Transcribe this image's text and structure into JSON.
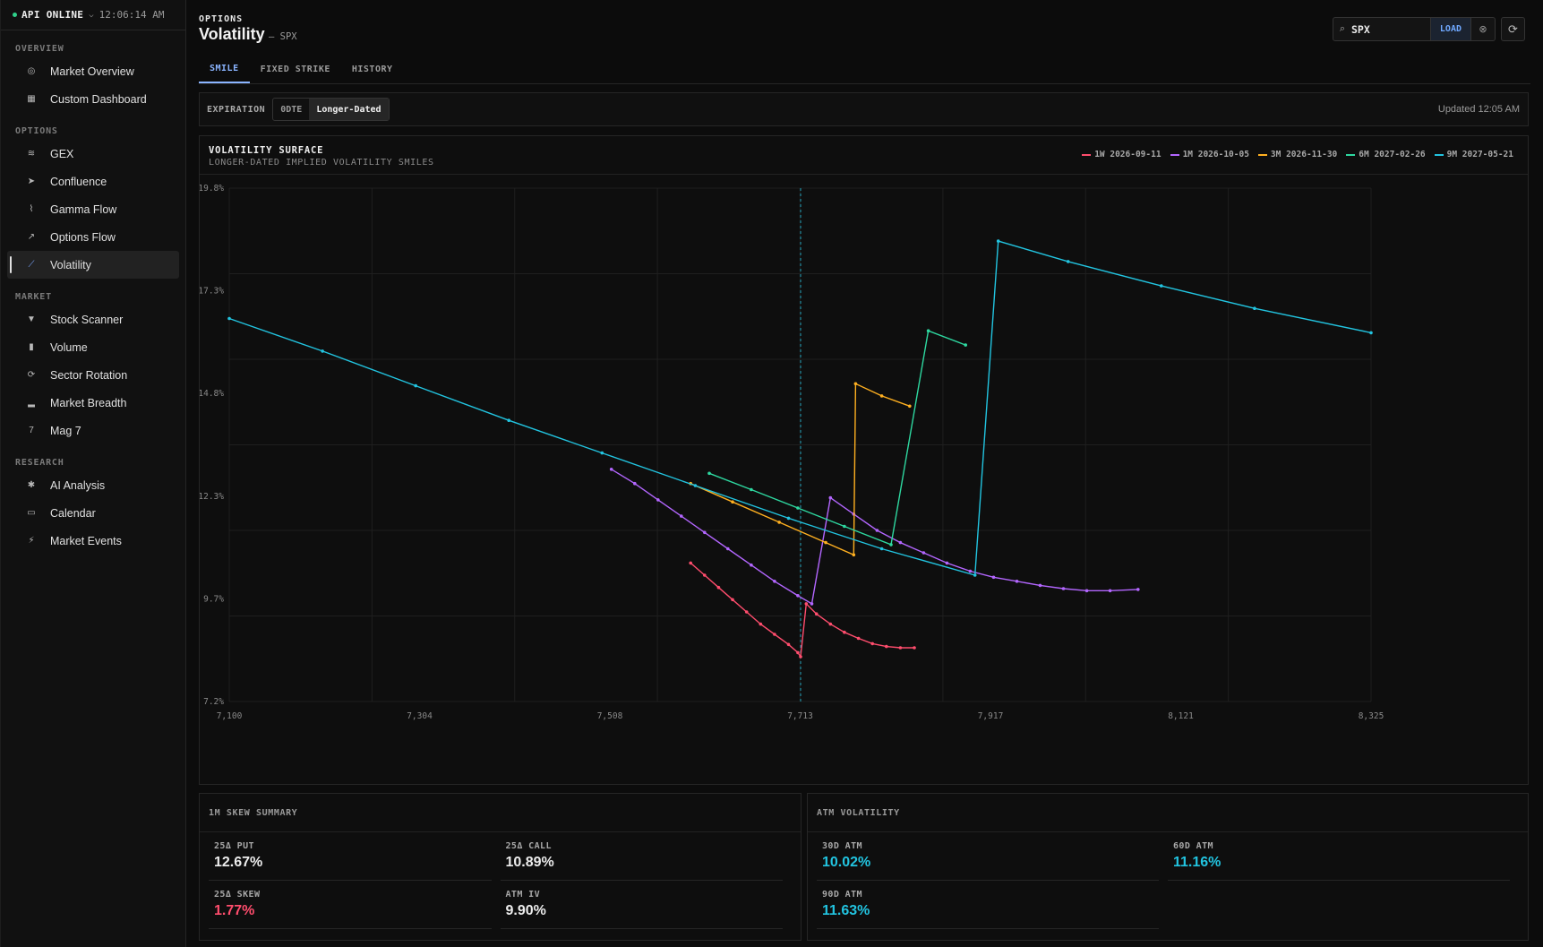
{
  "api": {
    "status": "API ONLINE",
    "time": "12:06:14 AM"
  },
  "nav": {
    "sections": [
      {
        "title": "OVERVIEW",
        "items": [
          {
            "label": "Market Overview",
            "icon": "crosshair-icon",
            "glyph": "◎"
          },
          {
            "label": "Custom Dashboard",
            "icon": "grid-icon",
            "glyph": "▦"
          }
        ]
      },
      {
        "title": "OPTIONS",
        "items": [
          {
            "label": "GEX",
            "icon": "layers-icon",
            "glyph": "≋"
          },
          {
            "label": "Confluence",
            "icon": "send-icon",
            "glyph": "➤"
          },
          {
            "label": "Gamma Flow",
            "icon": "activity-icon",
            "glyph": "⌇"
          },
          {
            "label": "Options Flow",
            "icon": "trend-icon",
            "glyph": "↗"
          },
          {
            "label": "Volatility",
            "icon": "line-chart-icon",
            "glyph": "⟋",
            "active": true
          }
        ]
      },
      {
        "title": "MARKET",
        "items": [
          {
            "label": "Stock Scanner",
            "icon": "filter-icon",
            "glyph": "▼"
          },
          {
            "label": "Volume",
            "icon": "bar-chart-icon",
            "glyph": "▮"
          },
          {
            "label": "Sector Rotation",
            "icon": "rotate-icon",
            "glyph": "⟳"
          },
          {
            "label": "Market Breadth",
            "icon": "signal-icon",
            "glyph": "▂"
          },
          {
            "label": "Mag 7",
            "icon": "seven-icon",
            "glyph": "7"
          }
        ]
      },
      {
        "title": "RESEARCH",
        "items": [
          {
            "label": "AI Analysis",
            "icon": "chip-icon",
            "glyph": "✱"
          },
          {
            "label": "Calendar",
            "icon": "calendar-icon",
            "glyph": "▭"
          },
          {
            "label": "Market Events",
            "icon": "lightning-icon",
            "glyph": "⚡"
          }
        ]
      }
    ]
  },
  "header": {
    "kicker": "OPTIONS",
    "title": "Volatility",
    "subtitle": "— SPX"
  },
  "search": {
    "value": "SPX",
    "load_label": "LOAD"
  },
  "tabs": [
    {
      "label": "SMILE",
      "active": true
    },
    {
      "label": "FIXED STRIKE"
    },
    {
      "label": "HISTORY"
    }
  ],
  "expiration": {
    "label": "EXPIRATION",
    "options": [
      "0DTE",
      "Longer-Dated"
    ],
    "selected": "Longer-Dated",
    "updated": "Updated 12:05 AM"
  },
  "chart": {
    "title": "VOLATILITY SURFACE",
    "subtitle": "LONGER-DATED IMPLIED VOLATILITY SMILES"
  },
  "chart_data": {
    "type": "line",
    "title": "VOLATILITY SURFACE",
    "subtitle": "LONGER-DATED IMPLIED VOLATILITY SMILES",
    "xlim": [
      7100,
      8325
    ],
    "ylim": [
      7.2,
      19.8
    ],
    "x_ticks": [
      "7,100",
      "7,304",
      "7,508",
      "7,713",
      "7,917",
      "8,121",
      "8,325"
    ],
    "y_ticks": [
      "19.8%",
      "17.3%",
      "14.8%",
      "12.3%",
      "9.7%",
      "7.2%"
    ],
    "spot": 7713,
    "grid": true,
    "legend_position": "top-right",
    "series": [
      {
        "name": "1W 2026-09-11",
        "color": "#ff4d6d",
        "segments": [
          [
            [
              7595,
              10.6
            ],
            [
              7610,
              10.3
            ],
            [
              7625,
              10.0
            ],
            [
              7640,
              9.7
            ],
            [
              7655,
              9.4
            ],
            [
              7670,
              9.1
            ],
            [
              7685,
              8.85
            ],
            [
              7700,
              8.6
            ],
            [
              7710,
              8.4
            ],
            [
              7713,
              8.3
            ],
            [
              7719,
              9.6
            ],
            [
              7730,
              9.35
            ],
            [
              7745,
              9.1
            ],
            [
              7760,
              8.9
            ],
            [
              7775,
              8.75
            ],
            [
              7790,
              8.62
            ],
            [
              7805,
              8.55
            ],
            [
              7820,
              8.52
            ],
            [
              7835,
              8.52
            ]
          ]
        ]
      },
      {
        "name": "1M 2026-10-05",
        "color": "#b366ff",
        "segments": [
          [
            [
              7510,
              12.9
            ],
            [
              7535,
              12.55
            ],
            [
              7560,
              12.15
            ],
            [
              7585,
              11.75
            ],
            [
              7610,
              11.35
            ],
            [
              7635,
              10.95
            ],
            [
              7660,
              10.55
            ],
            [
              7685,
              10.15
            ],
            [
              7710,
              9.8
            ],
            [
              7725,
              9.6
            ],
            [
              7745,
              12.2
            ],
            [
              7770,
              11.8
            ],
            [
              7795,
              11.4
            ],
            [
              7820,
              11.1
            ],
            [
              7845,
              10.85
            ],
            [
              7870,
              10.6
            ],
            [
              7895,
              10.4
            ],
            [
              7920,
              10.25
            ],
            [
              7945,
              10.15
            ],
            [
              7970,
              10.05
            ],
            [
              7995,
              9.97
            ],
            [
              8020,
              9.92
            ],
            [
              8045,
              9.92
            ],
            [
              8075,
              9.95
            ]
          ]
        ]
      },
      {
        "name": "3M 2026-11-30",
        "color": "#ffb020",
        "segments": [
          [
            [
              7595,
              12.55
            ],
            [
              7640,
              12.1
            ],
            [
              7690,
              11.6
            ],
            [
              7740,
              11.1
            ],
            [
              7770,
              10.8
            ],
            [
              7772,
              15.0
            ],
            [
              7800,
              14.7
            ],
            [
              7830,
              14.45
            ]
          ]
        ]
      },
      {
        "name": "6M 2027-02-26",
        "color": "#2ed8a0",
        "segments": [
          [
            [
              7615,
              12.8
            ],
            [
              7660,
              12.4
            ],
            [
              7710,
              11.95
            ],
            [
              7760,
              11.5
            ],
            [
              7810,
              11.05
            ],
            [
              7850,
              16.3
            ],
            [
              7890,
              15.95
            ]
          ]
        ]
      },
      {
        "name": "9M 2027-05-21",
        "color": "#22c4e0",
        "segments": [
          [
            [
              7100,
              16.6
            ],
            [
              7200,
              15.8
            ],
            [
              7300,
              14.95
            ],
            [
              7400,
              14.1
            ],
            [
              7500,
              13.3
            ],
            [
              7600,
              12.5
            ],
            [
              7700,
              11.7
            ],
            [
              7800,
              10.95
            ],
            [
              7900,
              10.3
            ],
            [
              7925,
              18.5
            ],
            [
              8000,
              18.0
            ],
            [
              8100,
              17.4
            ],
            [
              8200,
              16.85
            ],
            [
              8325,
              16.25
            ]
          ]
        ]
      }
    ]
  },
  "skew": {
    "title": "1M SKEW SUMMARY",
    "items": [
      {
        "label": "25Δ PUT",
        "value": "12.67%",
        "color": "#ececec"
      },
      {
        "label": "25Δ CALL",
        "value": "10.89%",
        "color": "#ececec"
      },
      {
        "label": "25Δ SKEW",
        "value": "1.77%",
        "color": "#ff4d6d"
      },
      {
        "label": "ATM IV",
        "value": "9.90%",
        "color": "#ececec"
      }
    ]
  },
  "atm": {
    "title": "ATM VOLATILITY",
    "items": [
      {
        "label": "30D ATM",
        "value": "10.02%",
        "color": "#22c4e0"
      },
      {
        "label": "60D ATM",
        "value": "11.16%",
        "color": "#22c4e0"
      },
      {
        "label": "90D ATM",
        "value": "11.63%",
        "color": "#22c4e0"
      }
    ]
  }
}
